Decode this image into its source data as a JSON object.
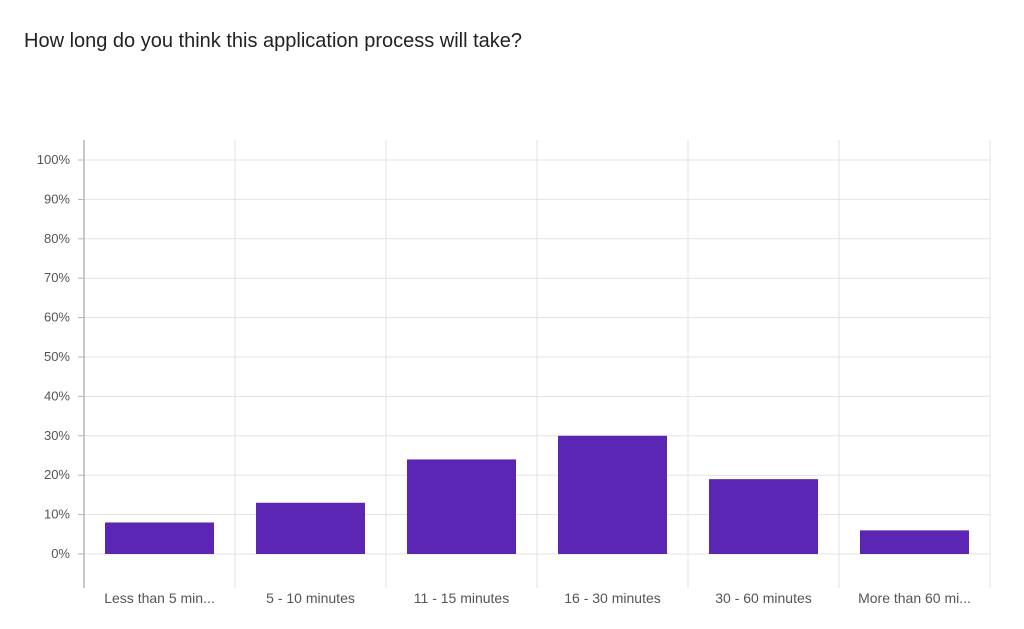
{
  "question": {
    "title": "How long do you think this application process will take?"
  },
  "chart_data": {
    "type": "bar",
    "title": "How long do you think this application process will take?",
    "xlabel": "",
    "ylabel": "",
    "categories": [
      "Less than 5 min...",
      "5 - 10 minutes",
      "11 - 15 minutes",
      "16 - 30 minutes",
      "30 - 60 minutes",
      "More than 60 mi..."
    ],
    "values": [
      8,
      13,
      24,
      30,
      19,
      6
    ],
    "value_unit": "%",
    "ylim": [
      0,
      100
    ],
    "yticks": [
      0,
      10,
      20,
      30,
      40,
      50,
      60,
      70,
      80,
      90,
      100
    ],
    "ytick_labels": [
      "0%",
      "10%",
      "20%",
      "30%",
      "40%",
      "50%",
      "60%",
      "70%",
      "80%",
      "90%",
      "100%"
    ],
    "grid": true,
    "legend": "none",
    "colors": {
      "bar": "#5b26b3",
      "grid": "#e3e3e3",
      "axis": "#b5b5b5"
    }
  }
}
